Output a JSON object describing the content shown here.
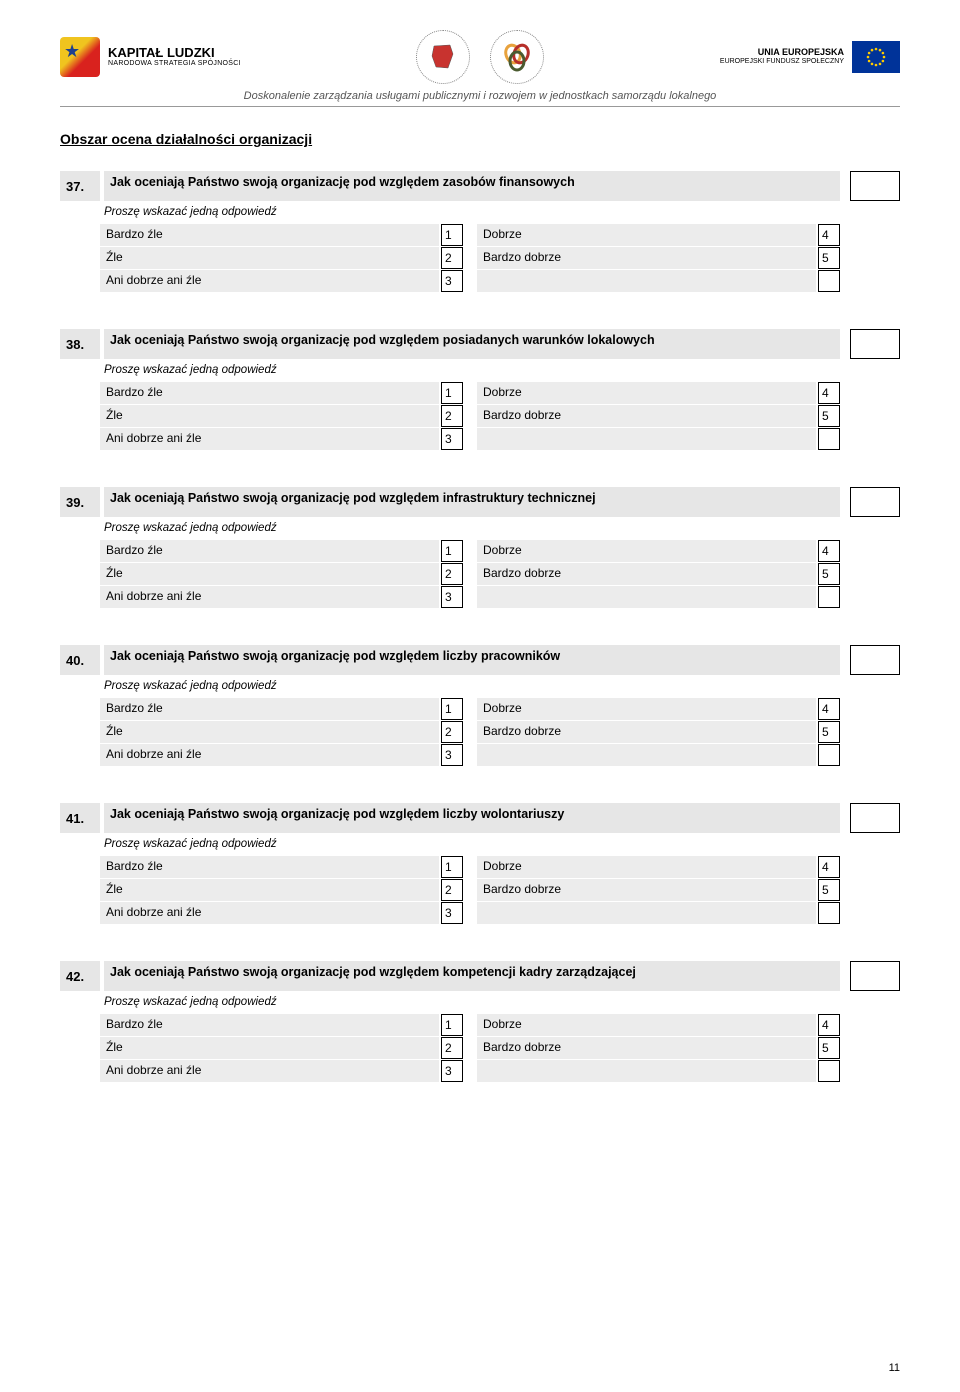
{
  "header": {
    "kapital_title": "KAPITAŁ LUDZKI",
    "kapital_sub": "NARODOWA STRATEGIA SPÓJNOŚCI",
    "eu_title": "UNIA EUROPEJSKA",
    "eu_sub": "EUROPEJSKI\nFUNDUSZ SPOŁECZNY",
    "subtitle": "Doskonalenie zarządzania usługami publicznymi i rozwojem w jednostkach samorządu lokalnego"
  },
  "section_title": "Obszar ocena działalności organizacji",
  "instruction": "Proszę wskazać jedną odpowiedź",
  "scale_left": [
    {
      "label": "Bardzo źle",
      "num": "1"
    },
    {
      "label": "Źle",
      "num": "2"
    },
    {
      "label": "Ani dobrze ani źle",
      "num": "3"
    }
  ],
  "scale_right": [
    {
      "label": "Dobrze",
      "num": "4"
    },
    {
      "label": "Bardzo dobrze",
      "num": "5"
    },
    {
      "label": "",
      "num": ""
    }
  ],
  "questions": [
    {
      "num": "37.",
      "text": "Jak oceniają Państwo swoją organizację pod względem zasobów finansowych"
    },
    {
      "num": "38.",
      "text": "Jak oceniają Państwo swoją organizację pod względem posiadanych warunków lokalowych"
    },
    {
      "num": "39.",
      "text": "Jak oceniają Państwo swoją organizację pod względem infrastruktury technicznej"
    },
    {
      "num": "40.",
      "text": "Jak oceniają Państwo swoją organizację pod względem liczby pracowników"
    },
    {
      "num": "41.",
      "text": "Jak oceniają Państwo swoją organizację pod względem liczby wolontariuszy"
    },
    {
      "num": "42.",
      "text": "Jak oceniają Państwo swoją organizację pod względem kompetencji kadry zarządzającej"
    }
  ],
  "page_number": "11",
  "colors": {
    "bg_gray": "#e6e6e6",
    "opt_gray": "#ececec",
    "border": "#000000",
    "text": "#000000",
    "subtitle_text": "#555555"
  }
}
